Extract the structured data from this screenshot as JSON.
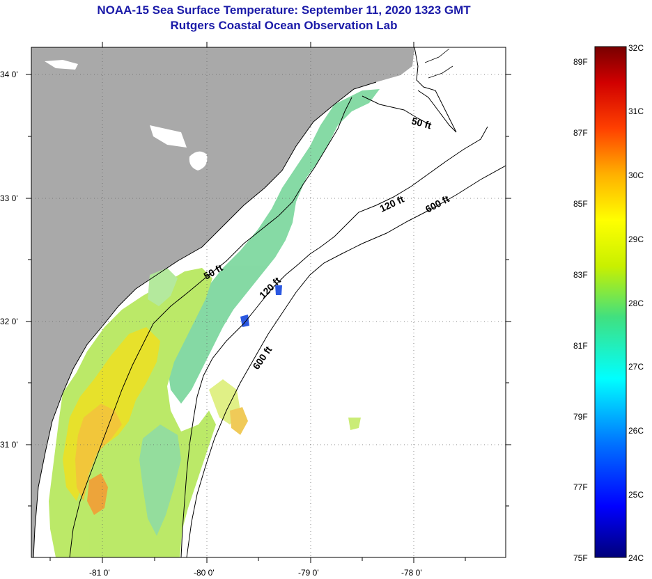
{
  "title": "NOAA-15 Sea Surface Temperature:  September 11, 2020 1323 GMT",
  "subtitle": "Rutgers Coastal Ocean Observation Lab",
  "lat_labels": [
    "34 0'",
    "33 0'",
    "32 0'",
    "31 0'"
  ],
  "lon_labels": [
    "-81 0'",
    "-80 0'",
    "-79 0'",
    "-78 0'"
  ],
  "contours": {
    "c50a": "50 ft",
    "c50b": "50 ft",
    "c120a": "120 ft",
    "c120b": "120 ft",
    "c600a": "600 ft",
    "c600b": "600 ft"
  },
  "colorbar": {
    "celsius": [
      "32C",
      "31C",
      "30C",
      "29C",
      "28C",
      "27C",
      "26C",
      "25C",
      "24C"
    ],
    "fahrenheit": [
      "89F",
      "87F",
      "85F",
      "83F",
      "81F",
      "79F",
      "77F",
      "75F"
    ]
  },
  "colors": {
    "land": "#a9a9a9",
    "title": "#1a1aa8",
    "ocean": "#ffffff"
  }
}
